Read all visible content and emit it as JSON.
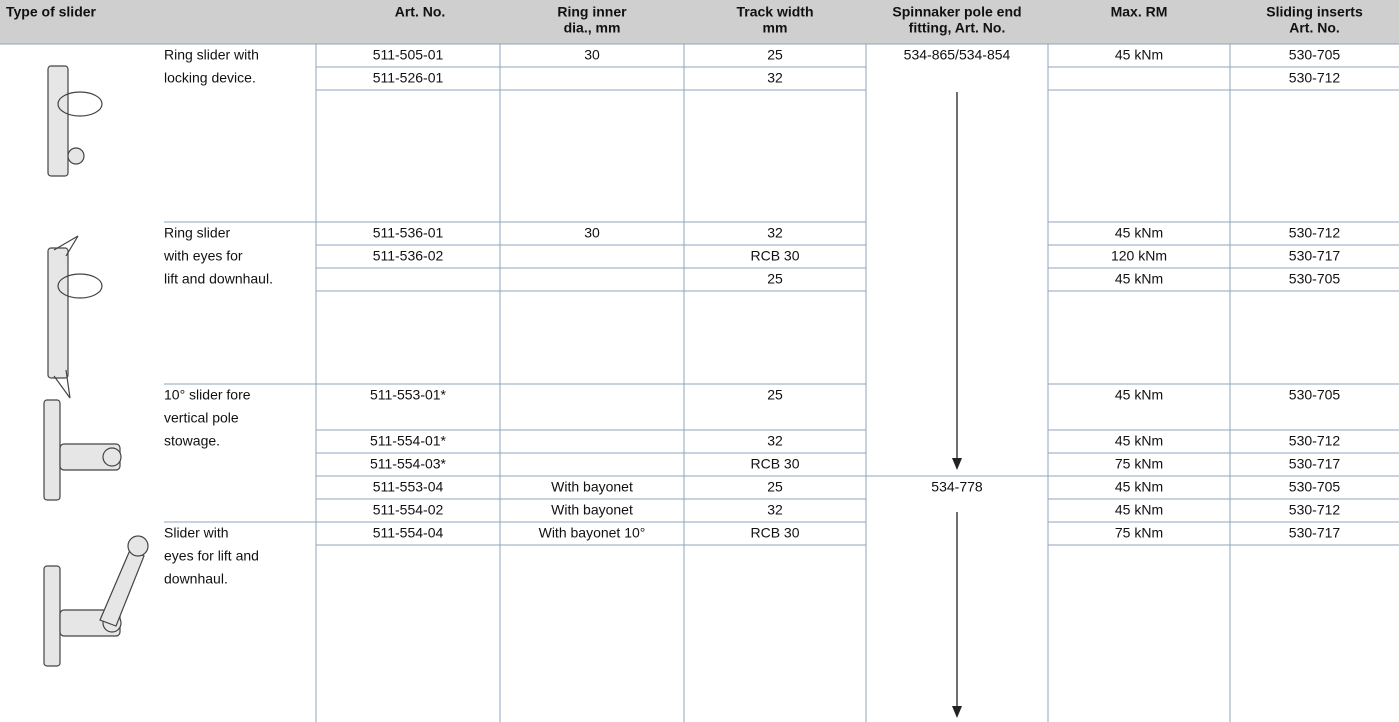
{
  "table": {
    "header": [
      [
        "Type of slider"
      ],
      [
        "Art. No."
      ],
      [
        "Ring inner",
        "dia., mm"
      ],
      [
        "Track width",
        "mm"
      ],
      [
        "Spinnaker pole end",
        "fitting, Art. No."
      ],
      [
        "Max. RM"
      ],
      [
        "Sliding inserts",
        "Art. No."
      ]
    ],
    "groups": [
      {
        "description": [
          "Ring slider with",
          "locking device."
        ]
      },
      {
        "description": [
          "Ring slider",
          "with eyes for",
          "lift and downhaul."
        ]
      },
      {
        "description": [
          "10° slider fore",
          "vertical pole",
          "stowage."
        ]
      },
      {
        "description": [
          "Slider with",
          "eyes for lift and",
          "downhaul."
        ]
      }
    ],
    "rows": [
      [
        "511-505-01",
        "30",
        "25",
        "534-865/534-854",
        "45 kNm",
        "530-705"
      ],
      [
        "511-526-01",
        null,
        "32",
        null,
        null,
        "530-712"
      ],
      [
        "511-536-01",
        "30",
        "32",
        null,
        "45 kNm",
        "530-712"
      ],
      [
        "511-536-02",
        null,
        "RCB 30",
        null,
        "120 kNm",
        "530-717"
      ],
      [
        null,
        null,
        "25",
        null,
        "45 kNm",
        "530-705"
      ],
      [
        "511-553-01*",
        null,
        "25",
        null,
        "45 kNm",
        "530-705"
      ],
      [
        "511-554-01*",
        null,
        "32",
        null,
        "45 kNm",
        "530-712"
      ],
      [
        "511-554-03*",
        null,
        "RCB 30",
        null,
        "75 kNm",
        "530-717"
      ],
      [
        "511-553-04",
        "With bayonet",
        "25",
        "534-778",
        "45 kNm",
        "530-705"
      ],
      [
        "511-554-02",
        "With bayonet",
        "32",
        null,
        "45 kNm",
        "530-712"
      ],
      [
        "511-554-04",
        "With bayonet  10°",
        "RCB 30",
        null,
        "75 kNm",
        "530-717"
      ]
    ]
  }
}
